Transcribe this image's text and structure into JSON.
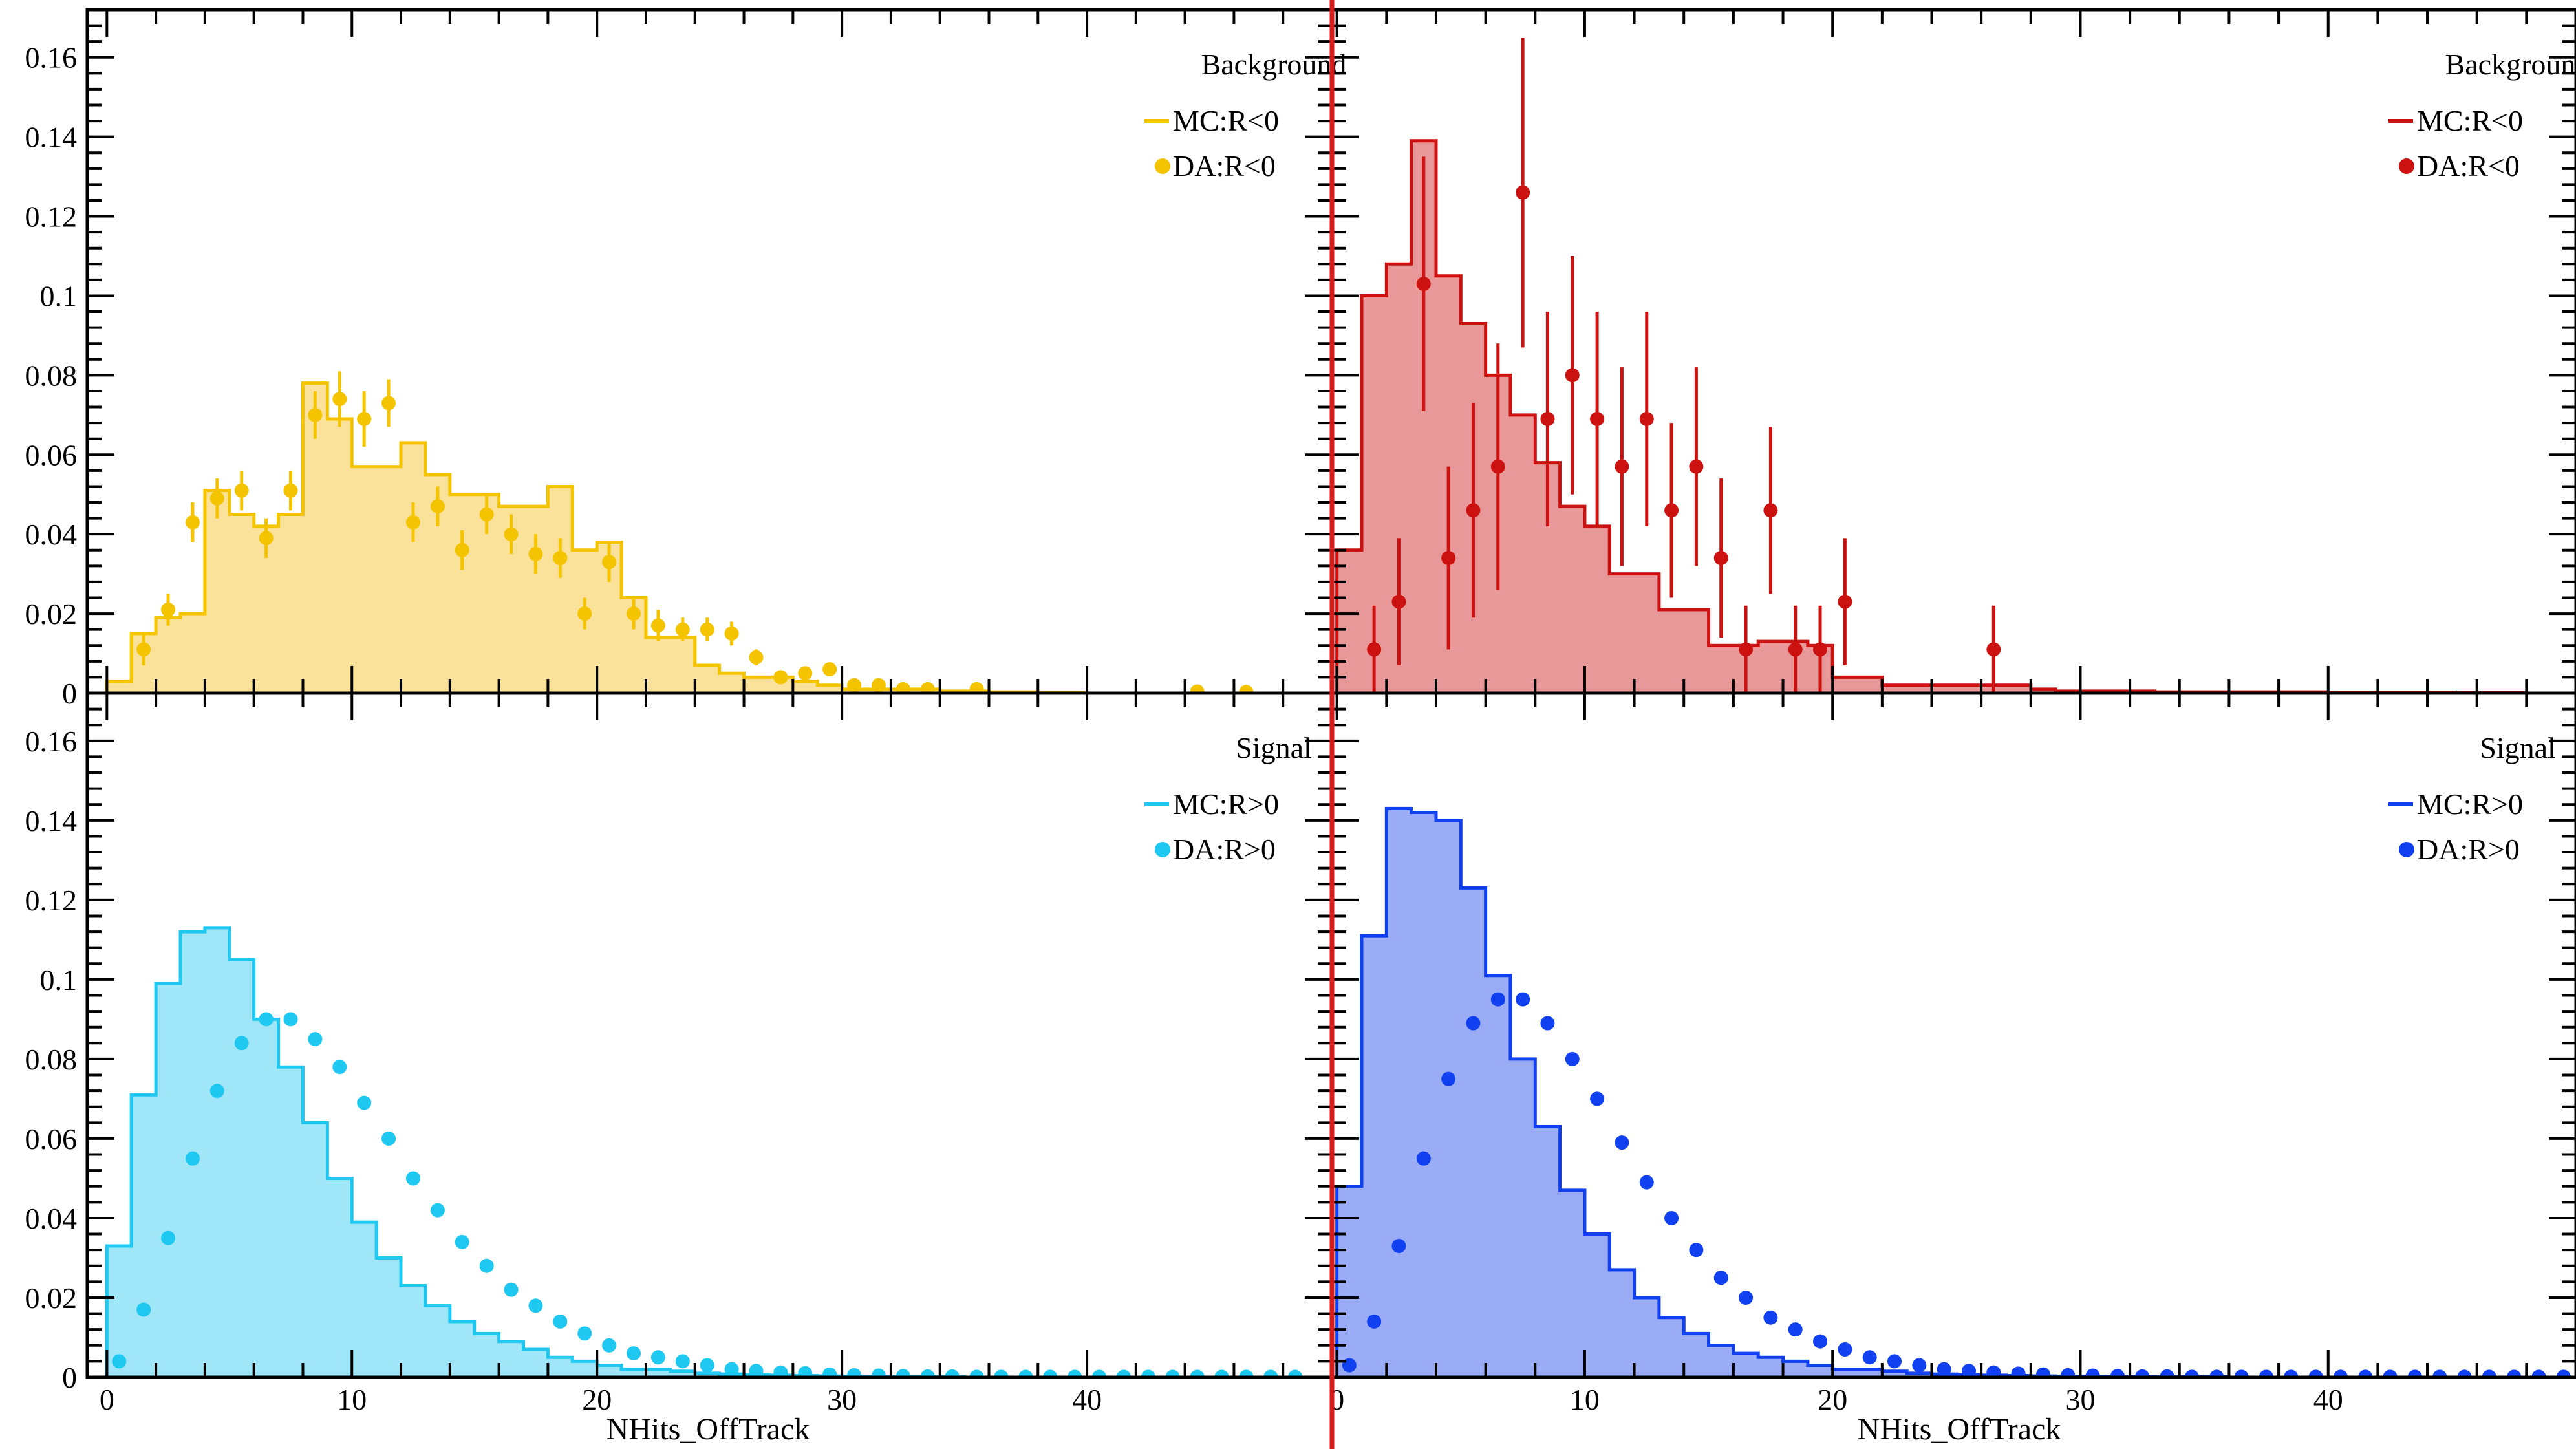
{
  "figure": {
    "x_axis_title": "NHits_OffTrack"
  },
  "chart_data": [
    {
      "type": "histogram",
      "panel": "top-left",
      "legend": {
        "title": "Background",
        "entries": [
          "MC:R<0",
          "DA:R<0"
        ],
        "placement": "top-right"
      },
      "colors": {
        "line": "#f5c400",
        "fill": "#fbe29a",
        "marker": "#f5c400"
      },
      "xlim": [
        -0.8,
        50
      ],
      "ylim": [
        0,
        0.172
      ],
      "xticks": [
        0,
        10,
        20,
        30,
        40
      ],
      "yticks": [
        0,
        0.02,
        0.04,
        0.06,
        0.08,
        0.1,
        0.12,
        0.14,
        0.16
      ],
      "ytick_labels": [
        "0",
        "0.02",
        "0.04",
        "0.06",
        "0.08",
        "0.1",
        "0.12",
        "0.14",
        "0.16"
      ],
      "mc": {
        "name": "MC:R<0",
        "bin_edges": [
          0,
          1,
          2,
          3,
          4,
          5,
          6,
          7,
          8,
          9,
          10,
          11,
          12,
          13,
          14,
          15,
          16,
          17,
          18,
          19,
          20,
          21,
          22,
          23,
          24,
          25,
          26,
          27,
          28,
          29,
          30,
          31,
          32,
          33,
          34,
          35,
          36,
          37,
          38,
          39,
          40
        ],
        "values": [
          0.003,
          0.015,
          0.019,
          0.02,
          0.051,
          0.045,
          0.042,
          0.045,
          0.078,
          0.069,
          0.057,
          0.057,
          0.063,
          0.055,
          0.05,
          0.05,
          0.047,
          0.047,
          0.052,
          0.036,
          0.038,
          0.024,
          0.014,
          0.014,
          0.007,
          0.005,
          0.004,
          0.004,
          0.003,
          0.002,
          0.001,
          0.001,
          0.001,
          0.001,
          0.0005,
          0.0005,
          0.0003,
          0.0003,
          0.0002,
          0.0002
        ]
      },
      "data": {
        "name": "DA:R<0",
        "x": [
          1.5,
          2.5,
          3.5,
          4.5,
          5.5,
          6.5,
          7.5,
          8.5,
          9.5,
          10.5,
          11.5,
          12.5,
          13.5,
          14.5,
          15.5,
          16.5,
          17.5,
          18.5,
          19.5,
          20.5,
          21.5,
          22.5,
          23.5,
          24.5,
          25.5,
          26.5,
          27.5,
          28.5,
          29.5,
          30.5,
          31.5,
          32.5,
          33.5,
          35.5,
          44.5,
          46.5
        ],
        "y": [
          0.011,
          0.021,
          0.043,
          0.049,
          0.051,
          0.039,
          0.051,
          0.07,
          0.074,
          0.069,
          0.073,
          0.043,
          0.047,
          0.036,
          0.045,
          0.04,
          0.035,
          0.034,
          0.02,
          0.033,
          0.02,
          0.017,
          0.016,
          0.016,
          0.015,
          0.009,
          0.004,
          0.005,
          0.006,
          0.002,
          0.002,
          0.001,
          0.001,
          0.001,
          0.0004,
          0.0003
        ],
        "err": [
          0.004,
          0.004,
          0.005,
          0.005,
          0.005,
          0.005,
          0.005,
          0.006,
          0.007,
          0.007,
          0.006,
          0.005,
          0.005,
          0.005,
          0.005,
          0.005,
          0.005,
          0.005,
          0.004,
          0.005,
          0.004,
          0.004,
          0.003,
          0.003,
          0.003,
          0.002,
          0.001,
          0.001,
          0.001,
          0.001,
          0.001,
          0.0005,
          0.0005,
          0.0005,
          0.0003,
          0.0003
        ]
      }
    },
    {
      "type": "histogram",
      "panel": "top-right",
      "legend": {
        "title": "Background",
        "entries": [
          "MC:R<0",
          "DA:R<0"
        ],
        "placement": "top-right"
      },
      "colors": {
        "line": "#cc1111",
        "fill": "#e89898",
        "marker": "#cc1111"
      },
      "xlim": [
        -0.2,
        50
      ],
      "ylim": [
        0,
        0.172
      ],
      "xticks": [
        0,
        10,
        20,
        30,
        40
      ],
      "yticks": [
        0,
        0.02,
        0.04,
        0.06,
        0.08,
        0.1,
        0.12,
        0.14,
        0.16
      ],
      "ytick_labels": [],
      "mc": {
        "name": "MC:R<0",
        "bin_edges": [
          0,
          1,
          2,
          3,
          4,
          5,
          6,
          7,
          8,
          9,
          10,
          11,
          12,
          13,
          14,
          15,
          16,
          17,
          18,
          19,
          20,
          21,
          22,
          23,
          24,
          25,
          26,
          27,
          28,
          29,
          30,
          31,
          32,
          33,
          34,
          35,
          36,
          37,
          38,
          39,
          40,
          41,
          42,
          43,
          44,
          45,
          46,
          47,
          48
        ],
        "values": [
          0.036,
          0.1,
          0.108,
          0.139,
          0.105,
          0.093,
          0.08,
          0.07,
          0.058,
          0.047,
          0.042,
          0.03,
          0.03,
          0.021,
          0.021,
          0.012,
          0.012,
          0.013,
          0.013,
          0.012,
          0.004,
          0.004,
          0.002,
          0.002,
          0.002,
          0.002,
          0.002,
          0.002,
          0.001,
          0.0005,
          0.0005,
          0.0005,
          0.0005,
          0.0003,
          0.0003,
          0.0003,
          0.0003,
          0.0003,
          0.0003,
          0.0003,
          0.0002,
          0.0002,
          0.0002,
          0.0002,
          0.0002,
          0.0001,
          0.0001,
          0.0001
        ]
      },
      "data": {
        "name": "DA:R<0",
        "x": [
          1.5,
          2.5,
          3.5,
          4.5,
          5.5,
          6.5,
          7.5,
          8.5,
          9.5,
          10.5,
          11.5,
          12.5,
          13.5,
          14.5,
          15.5,
          16.5,
          17.5,
          18.5,
          19.5,
          20.5,
          26.5
        ],
        "y": [
          0.011,
          0.023,
          0.103,
          0.034,
          0.046,
          0.057,
          0.126,
          0.069,
          0.08,
          0.069,
          0.057,
          0.069,
          0.046,
          0.057,
          0.034,
          0.011,
          0.046,
          0.011,
          0.011,
          0.023,
          0.011
        ],
        "err": [
          0.011,
          0.016,
          0.032,
          0.023,
          0.027,
          0.031,
          0.039,
          0.027,
          0.03,
          0.027,
          0.025,
          0.027,
          0.022,
          0.025,
          0.02,
          0.011,
          0.021,
          0.011,
          0.011,
          0.016,
          0.011
        ]
      }
    },
    {
      "type": "histogram",
      "panel": "bottom-left",
      "legend": {
        "title": "Signal",
        "entries": [
          "MC:R>0",
          "DA:R>0"
        ],
        "placement": "top-right"
      },
      "colors": {
        "line": "#1ec8f0",
        "fill": "#9ee6f8",
        "marker": "#1ec8f0"
      },
      "xlim": [
        -0.8,
        50
      ],
      "ylim": [
        0,
        0.172
      ],
      "xticks": [
        0,
        10,
        20,
        30,
        40
      ],
      "yticks": [
        0,
        0.02,
        0.04,
        0.06,
        0.08,
        0.1,
        0.12,
        0.14,
        0.16
      ],
      "ytick_labels": [
        "0",
        "0.02",
        "0.04",
        "0.06",
        "0.08",
        "0.1",
        "0.12",
        "0.14",
        "0.16"
      ],
      "mc": {
        "name": "MC:R>0",
        "bin_edges": [
          0,
          1,
          2,
          3,
          4,
          5,
          6,
          7,
          8,
          9,
          10,
          11,
          12,
          13,
          14,
          15,
          16,
          17,
          18,
          19,
          20,
          21,
          22,
          23,
          24,
          25,
          26,
          27,
          28,
          29,
          30,
          31,
          32,
          33,
          34,
          35
        ],
        "values": [
          0.033,
          0.071,
          0.099,
          0.112,
          0.113,
          0.105,
          0.09,
          0.078,
          0.064,
          0.05,
          0.039,
          0.03,
          0.023,
          0.018,
          0.014,
          0.011,
          0.009,
          0.007,
          0.005,
          0.004,
          0.003,
          0.002,
          0.002,
          0.0015,
          0.001,
          0.0008,
          0.0006,
          0.0005,
          0.0004,
          0.0003,
          0.0002,
          0.0002,
          0.0001,
          0.0001,
          0.0001
        ]
      },
      "data": {
        "name": "DA:R>0",
        "x": [
          0.5,
          1.5,
          2.5,
          3.5,
          4.5,
          5.5,
          6.5,
          7.5,
          8.5,
          9.5,
          10.5,
          11.5,
          12.5,
          13.5,
          14.5,
          15.5,
          16.5,
          17.5,
          18.5,
          19.5,
          20.5,
          21.5,
          22.5,
          23.5,
          24.5,
          25.5,
          26.5,
          27.5,
          28.5,
          29.5,
          30.5,
          31.5,
          32.5,
          33.5,
          34.5,
          35.5,
          36.5,
          37.5,
          38.5,
          39.5,
          40.5,
          41.5,
          42.5,
          43.5,
          44.5,
          45.5,
          46.5,
          47.5,
          48.5
        ],
        "y": [
          0.004,
          0.017,
          0.035,
          0.055,
          0.072,
          0.084,
          0.09,
          0.09,
          0.085,
          0.078,
          0.069,
          0.06,
          0.05,
          0.042,
          0.034,
          0.028,
          0.022,
          0.018,
          0.014,
          0.011,
          0.008,
          0.006,
          0.005,
          0.004,
          0.003,
          0.002,
          0.0016,
          0.0012,
          0.001,
          0.0007,
          0.0005,
          0.0004,
          0.0003,
          0.0002,
          0.0002,
          0.0001,
          0.0001,
          0.0001,
          0.0001,
          0.0001,
          0.0001,
          0.0001,
          0.0001,
          0.0001,
          0.0001,
          0.0001,
          0.0001,
          0.0001,
          0.0001
        ]
      }
    },
    {
      "type": "histogram",
      "panel": "bottom-right",
      "legend": {
        "title": "Signal",
        "entries": [
          "MC:R>0",
          "DA:R>0"
        ],
        "placement": "top-right"
      },
      "colors": {
        "line": "#1040f0",
        "fill": "#9aacf6",
        "marker": "#1040f0"
      },
      "xlim": [
        -0.2,
        50
      ],
      "ylim": [
        0,
        0.172
      ],
      "xticks": [
        0,
        10,
        20,
        30,
        40
      ],
      "yticks": [
        0,
        0.02,
        0.04,
        0.06,
        0.08,
        0.1,
        0.12,
        0.14,
        0.16
      ],
      "ytick_labels": [],
      "mc": {
        "name": "MC:R>0",
        "bin_edges": [
          0,
          1,
          2,
          3,
          4,
          5,
          6,
          7,
          8,
          9,
          10,
          11,
          12,
          13,
          14,
          15,
          16,
          17,
          18,
          19,
          20,
          21,
          22,
          23,
          24,
          25,
          26,
          27,
          28,
          29,
          30,
          31,
          32,
          33,
          34,
          35,
          36
        ],
        "values": [
          0.048,
          0.111,
          0.143,
          0.142,
          0.14,
          0.123,
          0.101,
          0.08,
          0.063,
          0.047,
          0.036,
          0.027,
          0.02,
          0.015,
          0.011,
          0.008,
          0.006,
          0.005,
          0.004,
          0.003,
          0.002,
          0.002,
          0.0015,
          0.001,
          0.0008,
          0.0006,
          0.0005,
          0.0004,
          0.0003,
          0.0002,
          0.0002,
          0.0001,
          0.0001,
          0.0001,
          0.0001,
          0.0001
        ]
      },
      "data": {
        "name": "DA:R>0",
        "x": [
          0.5,
          1.5,
          2.5,
          3.5,
          4.5,
          5.5,
          6.5,
          7.5,
          8.5,
          9.5,
          10.5,
          11.5,
          12.5,
          13.5,
          14.5,
          15.5,
          16.5,
          17.5,
          18.5,
          19.5,
          20.5,
          21.5,
          22.5,
          23.5,
          24.5,
          25.5,
          26.5,
          27.5,
          28.5,
          29.5,
          30.5,
          31.5,
          32.5,
          33.5,
          34.5,
          35.5,
          36.5,
          37.5,
          38.5,
          39.5,
          40.5,
          41.5,
          42.5,
          43.5,
          44.5,
          45.5,
          46.5,
          47.5,
          48.5,
          49.5
        ],
        "y": [
          0.003,
          0.014,
          0.033,
          0.055,
          0.075,
          0.089,
          0.095,
          0.095,
          0.089,
          0.08,
          0.07,
          0.059,
          0.049,
          0.04,
          0.032,
          0.025,
          0.02,
          0.015,
          0.012,
          0.009,
          0.007,
          0.005,
          0.004,
          0.003,
          0.002,
          0.0016,
          0.0012,
          0.0009,
          0.0007,
          0.0005,
          0.0004,
          0.0003,
          0.0002,
          0.0002,
          0.0001,
          0.0001,
          0.0001,
          0.0001,
          0.0001,
          0.0001,
          0.0001,
          0.0001,
          0.0001,
          0.0001,
          0.0001,
          0.0001,
          0.0001,
          0.0001,
          0.0001,
          0.0001
        ]
      }
    }
  ]
}
